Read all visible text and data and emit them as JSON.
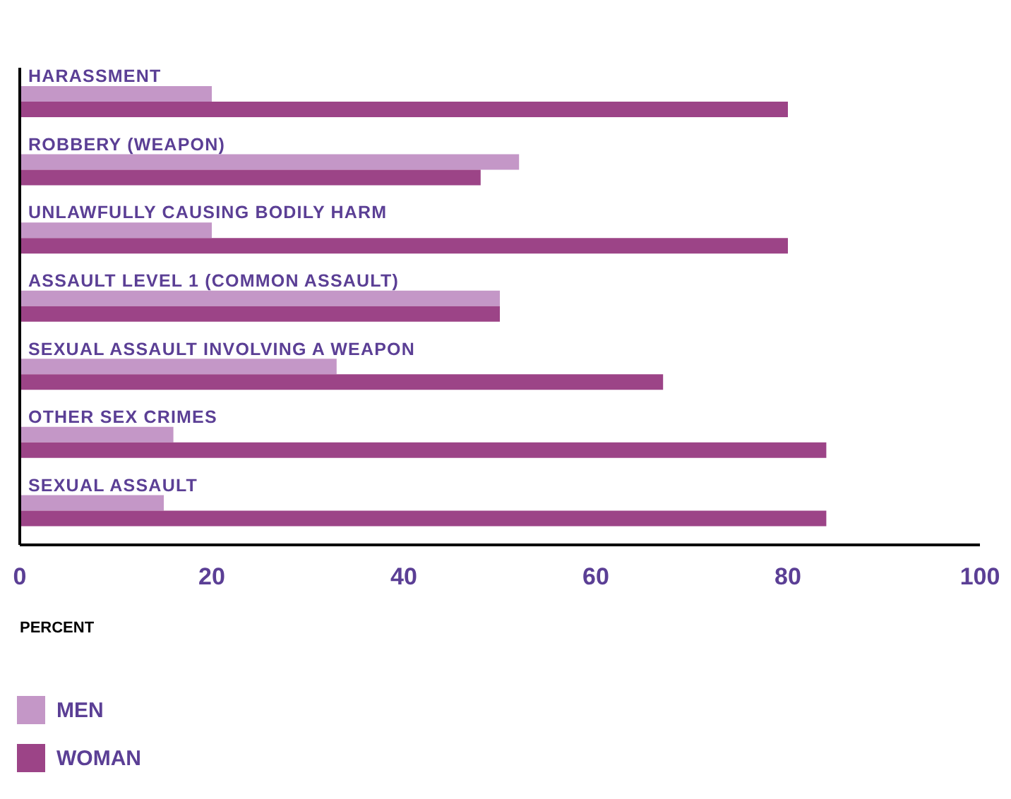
{
  "chart_data": {
    "type": "bar",
    "orientation": "horizontal",
    "xlabel": "PERCENT",
    "categories": [
      "HARASSMENT",
      "ROBBERY (WEAPON)",
      "UNLAWFULLY CAUSING BODILY HARM",
      "ASSAULT LEVEL 1 (COMMON ASSAULT)",
      "SEXUAL ASSAULT INVOLVING A WEAPON",
      "OTHER SEX CRIMES",
      "SEXUAL ASSAULT"
    ],
    "series": [
      {
        "name": "MEN",
        "color": "#c497c7",
        "values": [
          20,
          52,
          20,
          50,
          33,
          16,
          15
        ]
      },
      {
        "name": "WOMAN",
        "color": "#9c4487",
        "values": [
          80,
          48,
          80,
          50,
          67,
          84,
          84
        ]
      }
    ],
    "xlim": [
      0,
      100
    ],
    "xticks": [
      0,
      20,
      40,
      60,
      80,
      100
    ],
    "grid": false,
    "legend": "bottom left"
  }
}
